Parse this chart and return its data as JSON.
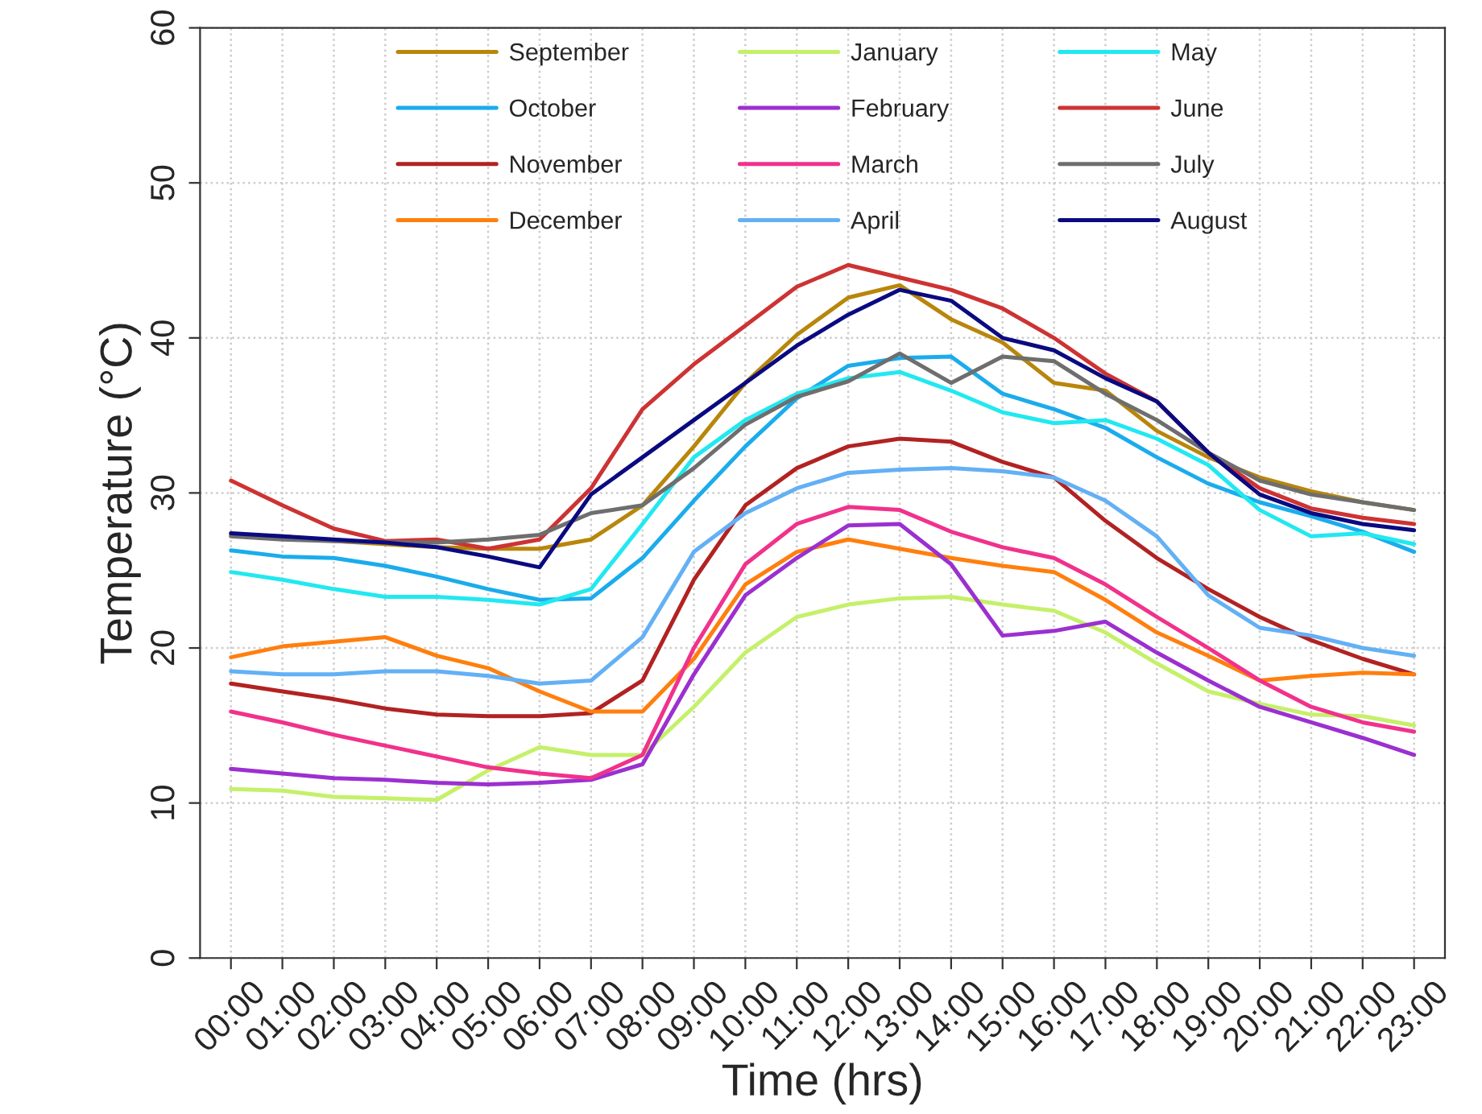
{
  "chart_data": {
    "type": "line",
    "xlabel": "Time (hrs)",
    "ylabel": "Temperature (°C)",
    "categories": [
      "00:00",
      "01:00",
      "02:00",
      "03:00",
      "04:00",
      "05:00",
      "06:00",
      "07:00",
      "08:00",
      "09:00",
      "10:00",
      "11:00",
      "12:00",
      "13:00",
      "14:00",
      "15:00",
      "16:00",
      "17:00",
      "18:00",
      "19:00",
      "20:00",
      "21:00",
      "22:00",
      "23:00"
    ],
    "ylim": [
      0,
      60
    ],
    "yticks": [
      0,
      10,
      20,
      30,
      40,
      50,
      60
    ],
    "grid": true,
    "legend": "top",
    "marker": "none",
    "line_style": "solid",
    "series": [
      {
        "name": "September",
        "color": "#b8860b",
        "values": [
          27.3,
          27.2,
          26.9,
          26.7,
          26.5,
          26.4,
          26.4,
          27.0,
          29.2,
          33.0,
          37.1,
          40.2,
          42.6,
          43.4,
          41.2,
          39.7,
          37.1,
          36.6,
          34.0,
          32.3,
          31.0,
          30.1,
          29.4,
          28.9
        ]
      },
      {
        "name": "October",
        "color": "#1aacec",
        "values": [
          26.3,
          25.9,
          25.8,
          25.3,
          24.6,
          23.8,
          23.1,
          23.2,
          25.8,
          29.5,
          33.0,
          36.1,
          38.2,
          38.7,
          38.8,
          36.4,
          35.4,
          34.2,
          32.3,
          30.6,
          29.4,
          28.5,
          27.5,
          26.2
        ]
      },
      {
        "name": "November",
        "color": "#b22222",
        "values": [
          17.7,
          17.2,
          16.7,
          16.1,
          15.7,
          15.6,
          15.6,
          15.8,
          17.9,
          24.4,
          29.2,
          31.6,
          33.0,
          33.5,
          33.3,
          32.0,
          31.0,
          28.2,
          25.8,
          23.8,
          22.0,
          20.5,
          19.3,
          18.3
        ]
      },
      {
        "name": "December",
        "color": "#ff7f0e",
        "values": [
          19.4,
          20.1,
          20.4,
          20.7,
          19.5,
          18.7,
          17.2,
          15.9,
          15.9,
          19.3,
          24.1,
          26.2,
          27.0,
          26.4,
          25.8,
          25.3,
          24.9,
          23.1,
          21.0,
          19.5,
          17.9,
          18.2,
          18.4,
          18.3
        ]
      },
      {
        "name": "January",
        "color": "#c5f06a",
        "values": [
          10.9,
          10.8,
          10.4,
          10.3,
          10.2,
          12.1,
          13.6,
          13.1,
          13.1,
          16.2,
          19.7,
          22.0,
          22.8,
          23.2,
          23.3,
          22.8,
          22.4,
          21.0,
          19.0,
          17.2,
          16.4,
          15.7,
          15.6,
          15.0
        ]
      },
      {
        "name": "February",
        "color": "#9b30d0",
        "values": [
          12.2,
          11.9,
          11.6,
          11.5,
          11.3,
          11.2,
          11.3,
          11.5,
          12.5,
          18.3,
          23.4,
          25.8,
          27.9,
          28.0,
          25.4,
          20.8,
          21.1,
          21.7,
          19.7,
          17.9,
          16.2,
          15.2,
          14.2,
          13.1
        ]
      },
      {
        "name": "March",
        "color": "#f0328c",
        "values": [
          15.9,
          15.2,
          14.4,
          13.7,
          13.0,
          12.3,
          11.9,
          11.6,
          13.1,
          20.0,
          25.4,
          28.0,
          29.1,
          28.9,
          27.5,
          26.5,
          25.8,
          24.1,
          22.0,
          20.0,
          17.9,
          16.2,
          15.2,
          14.6
        ]
      },
      {
        "name": "April",
        "color": "#63b0f5",
        "values": [
          18.5,
          18.3,
          18.3,
          18.5,
          18.5,
          18.2,
          17.7,
          17.9,
          20.7,
          26.2,
          28.7,
          30.3,
          31.3,
          31.5,
          31.6,
          31.4,
          31.0,
          29.5,
          27.2,
          23.4,
          21.3,
          20.8,
          20.0,
          19.5
        ]
      },
      {
        "name": "May",
        "color": "#22e8f0",
        "values": [
          24.9,
          24.4,
          23.8,
          23.3,
          23.3,
          23.1,
          22.8,
          23.8,
          28.0,
          32.3,
          34.7,
          36.4,
          37.4,
          37.8,
          36.6,
          35.2,
          34.5,
          34.7,
          33.5,
          31.8,
          28.9,
          27.2,
          27.4,
          26.7
        ]
      },
      {
        "name": "June",
        "color": "#cd3333",
        "values": [
          30.8,
          29.2,
          27.7,
          26.9,
          27.0,
          26.4,
          27.0,
          30.3,
          35.4,
          38.3,
          40.8,
          43.3,
          44.7,
          43.9,
          43.1,
          41.9,
          40.0,
          37.7,
          35.9,
          32.6,
          30.3,
          29.0,
          28.4,
          28.0
        ]
      },
      {
        "name": "July",
        "color": "#6e6e6e",
        "values": [
          27.2,
          27.0,
          26.9,
          26.8,
          26.8,
          27.0,
          27.3,
          28.7,
          29.2,
          31.6,
          34.4,
          36.2,
          37.2,
          39.0,
          37.1,
          38.8,
          38.5,
          36.4,
          34.7,
          32.6,
          30.8,
          29.9,
          29.4,
          28.9
        ]
      },
      {
        "name": "August",
        "color": "#0a0a80",
        "values": [
          27.4,
          27.2,
          27.0,
          26.8,
          26.5,
          25.9,
          25.2,
          29.9,
          32.3,
          34.7,
          37.1,
          39.5,
          41.5,
          43.1,
          42.4,
          40.0,
          39.2,
          37.4,
          35.9,
          32.6,
          29.9,
          28.7,
          28.0,
          27.6
        ]
      }
    ]
  }
}
